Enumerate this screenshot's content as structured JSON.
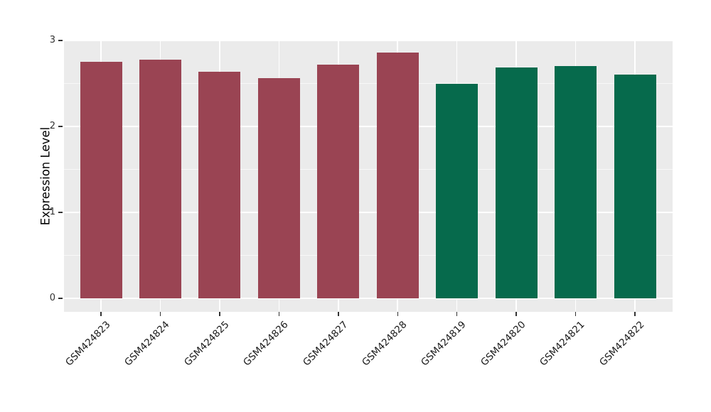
{
  "chart_data": {
    "type": "bar",
    "title": "",
    "xlabel": "",
    "ylabel": "Expression Level",
    "categories": [
      "GSM424823",
      "GSM424824",
      "GSM424825",
      "GSM424826",
      "GSM424827",
      "GSM424828",
      "GSM424819",
      "GSM424820",
      "GSM424821",
      "GSM424822"
    ],
    "values": [
      2.75,
      2.78,
      2.64,
      2.56,
      2.72,
      2.86,
      2.5,
      2.69,
      2.7,
      2.6
    ],
    "bar_colors": [
      "#9A4453",
      "#9A4453",
      "#9A4453",
      "#9A4453",
      "#9A4453",
      "#9A4453",
      "#066A4C",
      "#066A4C",
      "#066A4C",
      "#066A4C"
    ],
    "ylim": [
      0,
      3
    ],
    "yticks": [
      "0",
      "1",
      "2",
      "3"
    ],
    "minor_yticks": [
      0.5,
      1.5,
      2.5
    ],
    "grid": "on",
    "legend": "none",
    "panel_background": "#EBEBEB",
    "grid_color": "#FFFFFF",
    "tick_color": "#333333",
    "x_tick_rotation_deg": 45,
    "groups": [
      {
        "color": "#9A4453",
        "bar_count": 6
      },
      {
        "color": "#066A4C",
        "bar_count": 4
      }
    ]
  }
}
